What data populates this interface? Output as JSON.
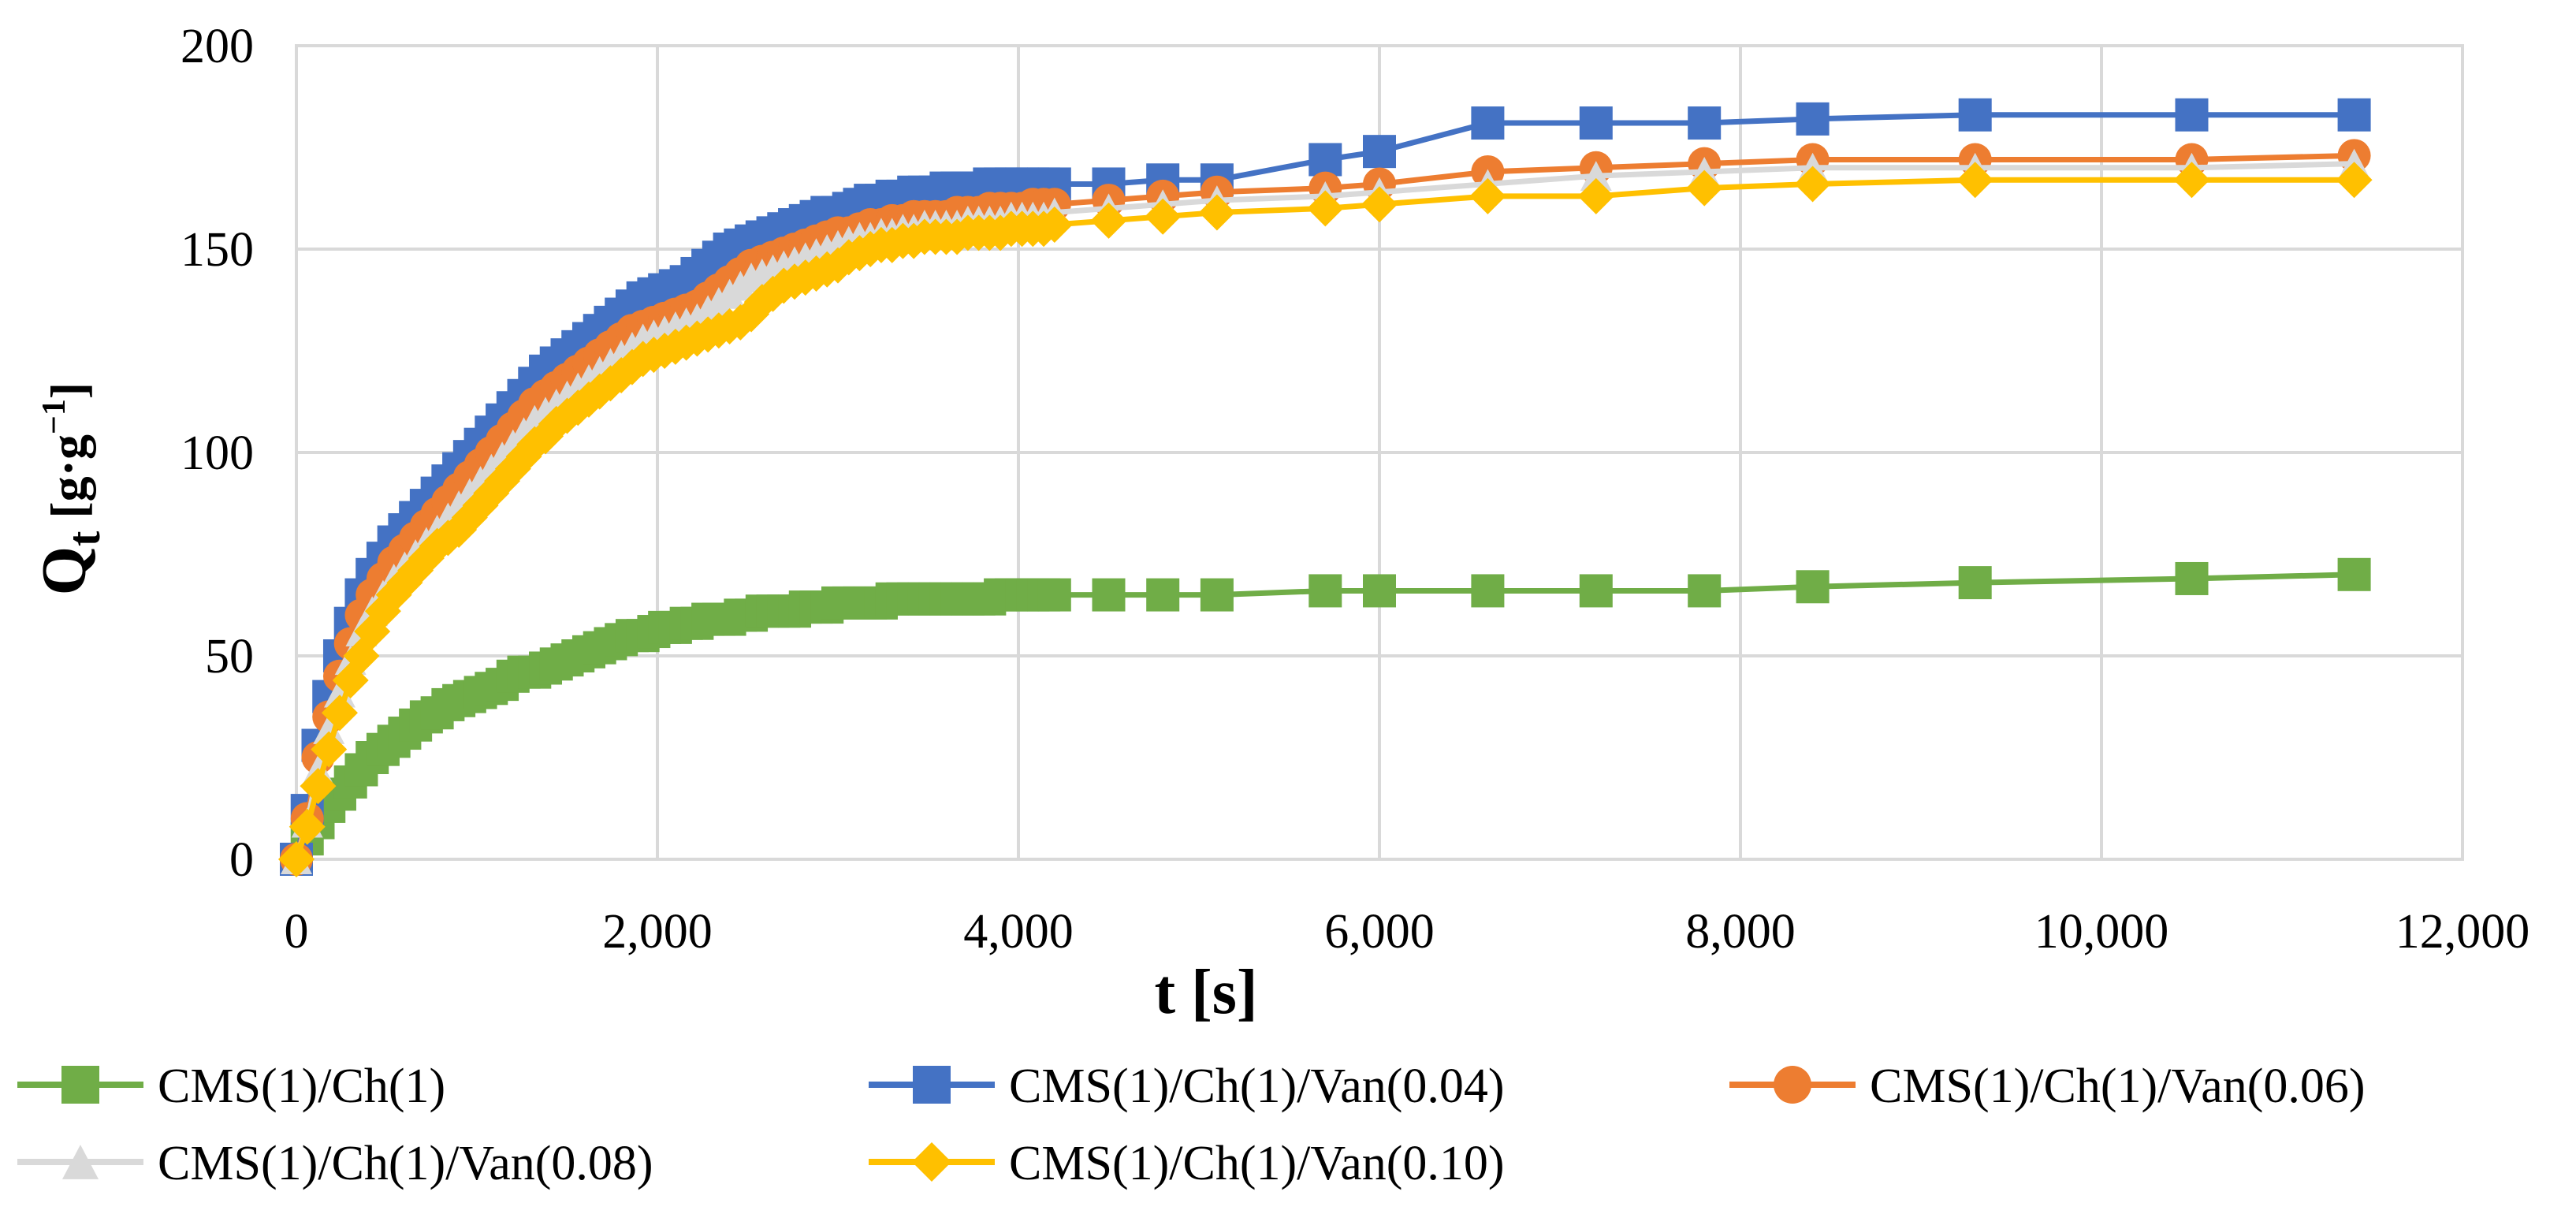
{
  "chart_data": {
    "type": "line",
    "title": "",
    "xlabel": "t [s]",
    "ylabel_main": "Q",
    "ylabel_sub": "t",
    "ylabel_unit_open": " [g·g",
    "ylabel_unit_sup": "−1",
    "ylabel_unit_close": "]",
    "xlim": [
      0,
      12000
    ],
    "ylim": [
      0,
      200
    ],
    "xticks": [
      0,
      2000,
      4000,
      6000,
      8000,
      10000,
      12000
    ],
    "xtick_labels": [
      "0",
      "2,000",
      "4,000",
      "6,000",
      "8,000",
      "10,000",
      "12,000"
    ],
    "yticks": [
      0,
      50,
      100,
      150,
      200
    ],
    "ytick_labels": [
      "0",
      "50",
      "100",
      "150",
      "200"
    ],
    "grid": true,
    "legend_position": "bottom",
    "series": [
      {
        "name": "CMS(1)/Ch(1)",
        "color": "#70AD47",
        "marker": "square",
        "x": [
          0,
          60,
          120,
          180,
          240,
          300,
          360,
          420,
          480,
          540,
          600,
          660,
          720,
          780,
          840,
          900,
          960,
          1020,
          1080,
          1140,
          1200,
          1260,
          1320,
          1380,
          1440,
          1500,
          1560,
          1620,
          1680,
          1740,
          1800,
          1860,
          1920,
          1980,
          2040,
          2100,
          2160,
          2220,
          2280,
          2340,
          2400,
          2460,
          2520,
          2580,
          2640,
          2700,
          2760,
          2820,
          2880,
          2940,
          3000,
          3060,
          3120,
          3180,
          3240,
          3300,
          3360,
          3420,
          3480,
          3540,
          3600,
          3660,
          3720,
          3780,
          3840,
          3900,
          3960,
          4020,
          4080,
          4140,
          4200,
          4500,
          4800,
          5100,
          5700,
          6000,
          6600,
          7200,
          7800,
          8400,
          9300,
          10500,
          11400
        ],
        "y": [
          0,
          5,
          9,
          13,
          16,
          19,
          22,
          25,
          27,
          29,
          31,
          33,
          35,
          36,
          38,
          39,
          40,
          41,
          42,
          43,
          45,
          46,
          46,
          47,
          48,
          49,
          50,
          51,
          52,
          53,
          54,
          55,
          55,
          56,
          57,
          57,
          58,
          58,
          59,
          59,
          59,
          60,
          60,
          61,
          61,
          61,
          61,
          62,
          62,
          62,
          63,
          63,
          63,
          63,
          63,
          64,
          64,
          64,
          64,
          64,
          64,
          64,
          64,
          64,
          64,
          65,
          65,
          65,
          65,
          65,
          65,
          65,
          65,
          65,
          66,
          66,
          66,
          66,
          66,
          67,
          68,
          69,
          70
        ]
      },
      {
        "name": "CMS(1)/Ch(1)/Van(0.04)",
        "color": "#4472C4",
        "marker": "square",
        "x": [
          0,
          60,
          120,
          180,
          240,
          300,
          360,
          420,
          480,
          540,
          600,
          660,
          720,
          780,
          840,
          900,
          960,
          1020,
          1080,
          1140,
          1200,
          1260,
          1320,
          1380,
          1440,
          1500,
          1560,
          1620,
          1680,
          1740,
          1800,
          1860,
          1920,
          1980,
          2040,
          2100,
          2160,
          2220,
          2280,
          2340,
          2400,
          2460,
          2520,
          2580,
          2640,
          2700,
          2760,
          2820,
          2880,
          2940,
          3000,
          3060,
          3120,
          3180,
          3240,
          3300,
          3360,
          3420,
          3480,
          3540,
          3600,
          3660,
          3720,
          3780,
          3840,
          3900,
          3960,
          4020,
          4080,
          4140,
          4200,
          4500,
          4800,
          5100,
          5700,
          6000,
          6600,
          7200,
          7800,
          8400,
          9300,
          10500,
          11400
        ],
        "y": [
          0,
          12,
          28,
          40,
          50,
          58,
          65,
          70,
          74,
          78,
          81,
          84,
          87,
          90,
          93,
          96,
          99,
          102,
          105,
          108,
          111,
          114,
          117,
          120,
          122,
          124,
          126,
          128,
          130,
          132,
          134,
          136,
          138,
          139,
          140,
          141,
          142,
          144,
          146,
          148,
          150,
          151,
          152,
          153,
          154,
          155,
          156,
          157,
          158,
          159,
          159,
          160,
          161,
          162,
          162,
          163,
          163,
          164,
          164,
          164,
          165,
          165,
          165,
          165,
          166,
          166,
          166,
          166,
          166,
          166,
          166,
          166,
          167,
          167,
          172,
          174,
          181,
          181,
          181,
          182,
          183,
          183,
          183
        ]
      },
      {
        "name": "CMS(1)/Ch(1)/Van(0.06)",
        "color": "#ED7D31",
        "marker": "circle",
        "x": [
          0,
          60,
          120,
          180,
          240,
          300,
          360,
          420,
          480,
          540,
          600,
          660,
          720,
          780,
          840,
          900,
          960,
          1020,
          1080,
          1140,
          1200,
          1260,
          1320,
          1380,
          1440,
          1500,
          1560,
          1620,
          1680,
          1740,
          1800,
          1860,
          1920,
          1980,
          2040,
          2100,
          2160,
          2220,
          2280,
          2340,
          2400,
          2460,
          2520,
          2580,
          2640,
          2700,
          2760,
          2820,
          2880,
          2940,
          3000,
          3060,
          3120,
          3180,
          3240,
          3300,
          3360,
          3420,
          3480,
          3540,
          3600,
          3660,
          3720,
          3780,
          3840,
          3900,
          3960,
          4020,
          4080,
          4140,
          4200,
          4500,
          4800,
          5100,
          5700,
          6000,
          6600,
          7200,
          7800,
          8400,
          9300,
          10500,
          11400
        ],
        "y": [
          0,
          10,
          25,
          35,
          45,
          53,
          60,
          65,
          69,
          73,
          76,
          79,
          82,
          85,
          88,
          91,
          94,
          97,
          100,
          103,
          106,
          109,
          112,
          114,
          116,
          118,
          120,
          122,
          124,
          126,
          128,
          130,
          131,
          132,
          133,
          134,
          135,
          136,
          138,
          140,
          142,
          144,
          146,
          147,
          148,
          149,
          150,
          151,
          152,
          153,
          154,
          154,
          155,
          156,
          156,
          157,
          157,
          158,
          158,
          158,
          158,
          159,
          159,
          159,
          160,
          160,
          160,
          160,
          161,
          161,
          161,
          162,
          163,
          164,
          165,
          166,
          169,
          170,
          171,
          172,
          172,
          172,
          173
        ]
      },
      {
        "name": "CMS(1)/Ch(1)/Van(0.08)",
        "color": "#D9D9D9",
        "marker": "triangle",
        "x": [
          0,
          60,
          120,
          180,
          240,
          300,
          360,
          420,
          480,
          540,
          600,
          660,
          720,
          780,
          840,
          900,
          960,
          1020,
          1080,
          1140,
          1200,
          1260,
          1320,
          1380,
          1440,
          1500,
          1560,
          1620,
          1680,
          1740,
          1800,
          1860,
          1920,
          1980,
          2040,
          2100,
          2160,
          2220,
          2280,
          2340,
          2400,
          2460,
          2520,
          2580,
          2640,
          2700,
          2760,
          2820,
          2880,
          2940,
          3000,
          3060,
          3120,
          3180,
          3240,
          3300,
          3360,
          3420,
          3480,
          3540,
          3600,
          3660,
          3720,
          3780,
          3840,
          3900,
          3960,
          4020,
          4080,
          4140,
          4200,
          4500,
          4800,
          5100,
          5700,
          6000,
          6600,
          7200,
          7800,
          8400,
          9300,
          10500,
          11400
        ],
        "y": [
          0,
          9,
          22,
          32,
          41,
          49,
          56,
          61,
          65,
          69,
          72,
          75,
          78,
          81,
          84,
          87,
          90,
          93,
          96,
          99,
          102,
          105,
          108,
          110,
          112,
          114,
          116,
          118,
          120,
          122,
          124,
          126,
          128,
          129,
          130,
          131,
          132,
          133,
          135,
          137,
          139,
          141,
          143,
          144,
          145,
          146,
          147,
          148,
          149,
          150,
          151,
          152,
          153,
          153,
          154,
          154,
          155,
          155,
          156,
          156,
          156,
          156,
          157,
          157,
          157,
          157,
          158,
          158,
          158,
          158,
          159,
          160,
          161,
          162,
          163,
          164,
          166,
          168,
          169,
          170,
          170,
          170,
          171
        ]
      },
      {
        "name": "CMS(1)/Ch(1)/Van(0.10)",
        "color": "#FFC000",
        "marker": "diamond",
        "x": [
          0,
          60,
          120,
          180,
          240,
          300,
          360,
          420,
          480,
          540,
          600,
          660,
          720,
          780,
          840,
          900,
          960,
          1020,
          1080,
          1140,
          1200,
          1260,
          1320,
          1380,
          1440,
          1500,
          1560,
          1620,
          1680,
          1740,
          1800,
          1860,
          1920,
          1980,
          2040,
          2100,
          2160,
          2220,
          2280,
          2340,
          2400,
          2460,
          2520,
          2580,
          2640,
          2700,
          2760,
          2820,
          2880,
          2940,
          3000,
          3060,
          3120,
          3180,
          3240,
          3300,
          3360,
          3420,
          3480,
          3540,
          3600,
          3660,
          3720,
          3780,
          3840,
          3900,
          3960,
          4020,
          4080,
          4140,
          4200,
          4500,
          4800,
          5100,
          5700,
          6000,
          6600,
          7200,
          7800,
          8400,
          9300,
          10500,
          11400
        ],
        "y": [
          0,
          8,
          18,
          27,
          36,
          44,
          50,
          56,
          61,
          65,
          68,
          71,
          74,
          77,
          79,
          81,
          84,
          87,
          90,
          93,
          96,
          99,
          102,
          104,
          107,
          109,
          111,
          113,
          115,
          117,
          119,
          121,
          123,
          124,
          125,
          126,
          127,
          128,
          129,
          130,
          131,
          132,
          134,
          137,
          139,
          141,
          142,
          143,
          144,
          145,
          146,
          148,
          149,
          150,
          151,
          151,
          152,
          152,
          153,
          153,
          153,
          153,
          154,
          154,
          154,
          154,
          155,
          155,
          155,
          155,
          156,
          157,
          158,
          159,
          160,
          161,
          163,
          163,
          165,
          166,
          167,
          167,
          167
        ]
      }
    ]
  }
}
